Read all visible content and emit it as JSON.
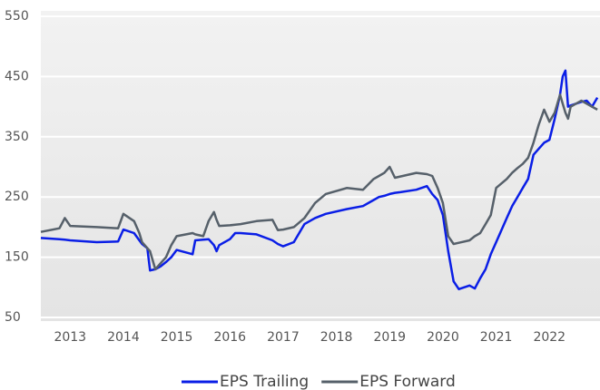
{
  "chart_data": {
    "type": "line",
    "x": [
      2012.45,
      2012.8,
      2012.9,
      2013.0,
      2013.5,
      2013.9,
      2014.0,
      2014.2,
      2014.3,
      2014.35,
      2014.45,
      2014.5,
      2014.6,
      2014.7,
      2014.8,
      2014.9,
      2015.0,
      2015.3,
      2015.35,
      2015.5,
      2015.6,
      2015.7,
      2015.75,
      2015.8,
      2016.0,
      2016.1,
      2016.2,
      2016.5,
      2016.8,
      2016.9,
      2017.0,
      2017.2,
      2017.4,
      2017.6,
      2017.8,
      2018.2,
      2018.5,
      2018.7,
      2018.8,
      2018.9,
      2019.0,
      2019.1,
      2019.2,
      2019.5,
      2019.7,
      2019.8,
      2019.9,
      2020.0,
      2020.1,
      2020.2,
      2020.3,
      2020.5,
      2020.6,
      2020.7,
      2020.8,
      2020.9,
      2021.0,
      2021.2,
      2021.3,
      2021.4,
      2021.5,
      2021.6,
      2021.7,
      2021.8,
      2021.9,
      2022.0,
      2022.1,
      2022.2,
      2022.25,
      2022.3,
      2022.35,
      2022.4,
      2022.5,
      2022.6,
      2022.7,
      2022.8,
      2022.9
    ],
    "series": [
      {
        "name": "EPS Trailing",
        "color": "#0a1ee6",
        "values": [
          182,
          180,
          179,
          178,
          175,
          176,
          196,
          190,
          178,
          172,
          165,
          128,
          130,
          135,
          142,
          150,
          162,
          155,
          178,
          179,
          180,
          170,
          160,
          170,
          180,
          190,
          190,
          188,
          178,
          172,
          168,
          175,
          205,
          215,
          222,
          230,
          235,
          245,
          250,
          252,
          255,
          257,
          258,
          262,
          268,
          255,
          245,
          220,
          160,
          110,
          97,
          103,
          98,
          115,
          130,
          155,
          175,
          215,
          235,
          250,
          265,
          280,
          320,
          330,
          340,
          345,
          380,
          420,
          450,
          460,
          400,
          402,
          405,
          408,
          410,
          400,
          415
        ]
      },
      {
        "name": "EPS Forward",
        "color": "#56606a",
        "values": [
          192,
          198,
          215,
          202,
          200,
          198,
          222,
          210,
          190,
          175,
          165,
          160,
          130,
          140,
          150,
          170,
          185,
          190,
          188,
          185,
          210,
          225,
          212,
          202,
          203,
          204,
          205,
          210,
          212,
          195,
          196,
          200,
          215,
          240,
          255,
          265,
          262,
          280,
          285,
          290,
          300,
          282,
          284,
          290,
          288,
          285,
          265,
          240,
          185,
          172,
          174,
          178,
          185,
          190,
          205,
          220,
          265,
          280,
          290,
          298,
          305,
          315,
          340,
          370,
          395,
          375,
          390,
          420,
          405,
          390,
          380,
          400,
          405,
          410,
          405,
          400,
          395
        ]
      }
    ],
    "xlim": [
      2012.45,
      2022.95
    ],
    "xticks": [
      2013,
      2014,
      2015,
      2016,
      2017,
      2018,
      2019,
      2020,
      2021,
      2022
    ],
    "ylim": [
      50,
      550
    ],
    "yticks": [
      50,
      150,
      250,
      350,
      450,
      550
    ],
    "grid": true,
    "legend": "bottom"
  }
}
